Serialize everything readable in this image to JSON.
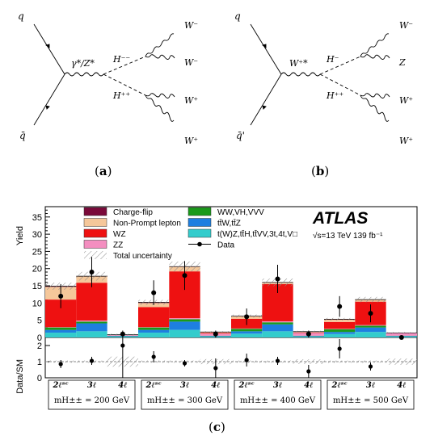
{
  "diagram_a": {
    "label": "a",
    "quark": "q",
    "antiquark": "q̄",
    "propagator": "γ*/Z*",
    "h_minus": "H⁻⁻",
    "h_plus": "H⁺⁺",
    "w1": "W⁻",
    "w2": "W⁻",
    "w3": "W⁺",
    "w4": "W⁺"
  },
  "diagram_b": {
    "label": "b",
    "quark": "q",
    "antiquark": "q̄'",
    "propagator": "W⁺*",
    "h_minus": "H⁻",
    "h_plus": "H⁺⁺",
    "w1": "W⁻",
    "w2": "Z",
    "w3": "W⁺",
    "w4": "W⁺"
  },
  "panel_c_label": "c",
  "chart_data": {
    "type": "bar",
    "experiment": "ATLAS",
    "energy_label": "√s=13 TeV 139 fb⁻¹",
    "ylabel_top": "Yield",
    "ylabel_bottom": "Data/SM",
    "ylim_top": [
      0,
      38
    ],
    "ylim_bottom": [
      0,
      2.5
    ],
    "yticks_top": [
      "0",
      "5",
      "10",
      "15",
      "20",
      "25",
      "30",
      "35"
    ],
    "yticks_bottom": [
      "0",
      "1",
      "2"
    ],
    "categories": [
      "2ℓˢᶜ",
      "3ℓ",
      "4ℓ",
      "2ℓˢᶜ",
      "3ℓ",
      "4ℓ",
      "2ℓˢᶜ",
      "3ℓ",
      "4ℓ",
      "2ℓˢᶜ",
      "3ℓ",
      "4ℓ"
    ],
    "groups": [
      {
        "label": "m_H±± = 200 GeV",
        "text": "mH±± = 200 GeV"
      },
      {
        "label": "m_H±± = 300 GeV",
        "text": "mH±± = 300 GeV"
      },
      {
        "label": "m_H±± = 400 GeV",
        "text": "mH±± = 400 GeV"
      },
      {
        "label": "m_H±± = 500 GeV",
        "text": "mH±± = 500 GeV"
      }
    ],
    "legend": [
      {
        "name": "Charge-flip",
        "color": "#7a0a3a"
      },
      {
        "name": "WW,VH,VVV",
        "color": "#1a9a1a"
      },
      {
        "name": "Non-Prompt lepton",
        "color": "#f5c79a"
      },
      {
        "name": "tt̄W,tt̄Z",
        "color": "#1e7fe0"
      },
      {
        "name": "WZ",
        "color": "#ee1111"
      },
      {
        "name": "t(W)Z,tt̄H,tt̄VV,3t,4t,V□",
        "color": "#33cccc"
      },
      {
        "name": "ZZ",
        "color": "#f48ec0"
      },
      {
        "name": "Data",
        "color": "#000000"
      },
      {
        "name": "Total uncertainty",
        "color": "#999999"
      }
    ],
    "series": [
      {
        "name": "t(W)Z,tt̄H,tt̄VV,3t,4t,V□",
        "values": [
          1.4,
          1.8,
          0.2,
          1.4,
          2.2,
          0.2,
          1.1,
          1.8,
          0.2,
          1.0,
          1.6,
          0.2
        ]
      },
      {
        "name": "tt̄W,tt̄Z",
        "values": [
          0.8,
          2.3,
          0.2,
          0.8,
          2.4,
          0.2,
          0.7,
          2.0,
          0.2,
          0.6,
          1.3,
          0.2
        ]
      },
      {
        "name": "WW,VH,VVV",
        "values": [
          0.7,
          0.5,
          0.1,
          0.7,
          0.7,
          0.1,
          0.7,
          0.6,
          0.1,
          0.8,
          0.5,
          0.1
        ]
      },
      {
        "name": "ZZ",
        "values": [
          0.1,
          0.3,
          0.3,
          0.1,
          0.3,
          0.6,
          0.1,
          0.3,
          0.8,
          0.1,
          0.2,
          0.8
        ]
      },
      {
        "name": "WZ",
        "values": [
          8.0,
          11.0,
          0.0,
          5.8,
          13.6,
          0.2,
          2.8,
          10.8,
          0.1,
          2.0,
          6.8,
          0.0
        ]
      },
      {
        "name": "Non-Prompt lepton",
        "values": [
          3.7,
          1.8,
          0.0,
          1.2,
          1.3,
          0.2,
          0.7,
          0.4,
          0.2,
          0.7,
          0.5,
          0.0
        ]
      },
      {
        "name": "Charge-flip",
        "values": [
          0.2,
          0.1,
          0.0,
          0.2,
          0.1,
          0.1,
          0.1,
          0.1,
          0.1,
          0.1,
          0.1,
          0.0
        ]
      }
    ],
    "data": [
      12.0,
      19.0,
      1.0,
      13.0,
      18.0,
      1.0,
      6.0,
      17.0,
      1.0,
      9.0,
      7.0,
      0.0
    ],
    "data_err": [
      3.5,
      4.4,
      1.0,
      3.6,
      4.2,
      1.0,
      2.4,
      4.1,
      1.0,
      3.0,
      2.6,
      0.0
    ],
    "ratio": [
      0.85,
      1.05,
      2.0,
      1.3,
      0.9,
      0.6,
      1.1,
      1.05,
      0.4,
      1.8,
      0.7,
      null
    ],
    "ratio_err": [
      0.25,
      0.25,
      2.0,
      0.35,
      0.2,
      0.6,
      0.4,
      0.25,
      0.4,
      0.6,
      0.25,
      null
    ]
  }
}
